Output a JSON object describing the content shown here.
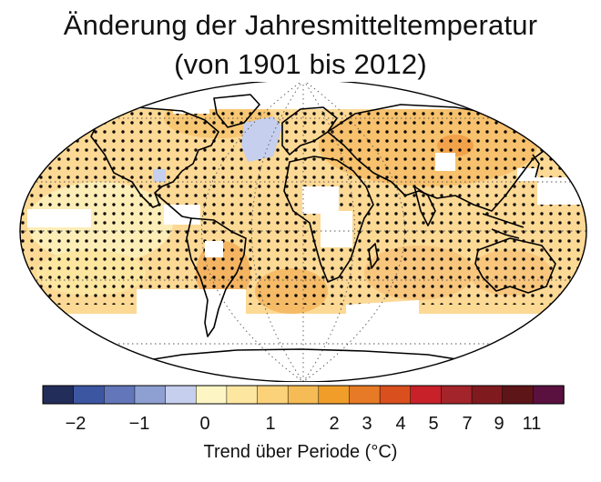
{
  "title_line1": "Änderung der Jahresmitteltemperatur",
  "title_line2": "(von 1901 bis 2012)",
  "colorbar": {
    "label": "Trend über Periode (°C)",
    "tick_labels": [
      "−2",
      "−1",
      "0",
      "1",
      "2",
      "3",
      "4",
      "5",
      "7",
      "9",
      "11"
    ],
    "colors": [
      "#232d5a",
      "#3c56a2",
      "#6276b9",
      "#8ea0d2",
      "#c6cfee",
      "#fdf5c4",
      "#fde6a0",
      "#fbd27a",
      "#f5bb55",
      "#f09e29",
      "#e67a26",
      "#d9501e",
      "#c9212a",
      "#a3242a",
      "#7f1a1f",
      "#5e1518",
      "#5a1140"
    ]
  }
}
